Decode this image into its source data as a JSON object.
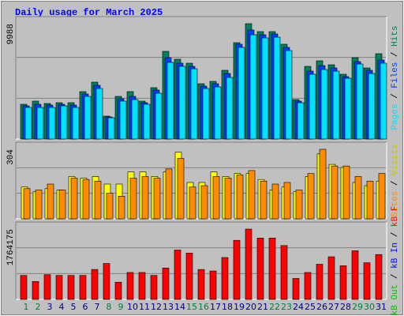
{
  "title": "Daily usage for March 2025",
  "categories": [
    "1",
    "2",
    "3",
    "4",
    "5",
    "6",
    "7",
    "8",
    "9",
    "10",
    "11",
    "12",
    "13",
    "14",
    "15",
    "16",
    "17",
    "18",
    "19",
    "20",
    "21",
    "22",
    "23",
    "24",
    "25",
    "26",
    "27",
    "28",
    "29",
    "30",
    "31"
  ],
  "category_colors": [
    "#008040",
    "#008040",
    "#000080",
    "#000080",
    "#000080",
    "#000080",
    "#000080",
    "#008040",
    "#008040",
    "#000080",
    "#000080",
    "#000080",
    "#000080",
    "#000080",
    "#008040",
    "#008040",
    "#000080",
    "#000080",
    "#000080",
    "#000080",
    "#000080",
    "#008040",
    "#008040",
    "#000080",
    "#000080",
    "#000080",
    "#000080",
    "#000080",
    "#008040",
    "#008040",
    "#000080"
  ],
  "chart_data": [
    {
      "type": "bar",
      "ylim": [
        0,
        9988
      ],
      "yticks": [
        9988
      ],
      "series": [
        {
          "name": "Hits",
          "color": "#00805c",
          "values": [
            3010,
            3284,
            3078,
            3147,
            3147,
            4105,
            4926,
            1984,
            3694,
            4105,
            3284,
            4447,
            7594,
            6909,
            6567,
            4789,
            4994,
            5952,
            8346,
            9988,
            9304,
            9304,
            8209,
            3420,
            6294,
            6773,
            6431,
            5610,
            7046,
            6157,
            7388
          ]
        },
        {
          "name": "Files",
          "color": "#0040ff",
          "values": [
            2873,
            3010,
            2942,
            3010,
            2942,
            3899,
            4652,
            1915,
            3489,
            3694,
            3147,
            4241,
            7046,
            6567,
            6294,
            4584,
            4789,
            5678,
            8209,
            9441,
            9030,
            9099,
            7936,
            3284,
            5883,
            6362,
            6157,
            5404,
            6704,
            5952,
            6841
          ]
        },
        {
          "name": "Pages",
          "color": "#00e0ff",
          "values": [
            2736,
            2736,
            2736,
            2873,
            2736,
            3694,
            4378,
            1847,
            3284,
            3420,
            3010,
            3968,
            6636,
            6294,
            6088,
            4378,
            4515,
            5336,
            7936,
            9030,
            8757,
            8825,
            7662,
            3147,
            5610,
            6020,
            5883,
            5267,
            6499,
            5678,
            6567
          ]
        }
      ]
    },
    {
      "type": "bar",
      "ylim": [
        0,
        304
      ],
      "yticks": [
        304
      ],
      "series": [
        {
          "name": "Visits",
          "color": "#ffff00",
          "values": [
            139,
            119,
            132,
            126,
            185,
            178,
            185,
            152,
            152,
            205,
            205,
            185,
            205,
            291,
            159,
            159,
            205,
            185,
            198,
            198,
            172,
            126,
            139,
            119,
            185,
            284,
            238,
            225,
            159,
            145,
            165
          ]
        },
        {
          "name": "Sites",
          "color": "#ff8c00",
          "values": [
            132,
            126,
            152,
            126,
            178,
            172,
            165,
            112,
            99,
            178,
            185,
            178,
            218,
            264,
            139,
            145,
            185,
            178,
            192,
            211,
            165,
            152,
            159,
            126,
            198,
            304,
            231,
            231,
            185,
            165,
            198
          ]
        }
      ]
    },
    {
      "type": "bar",
      "ylim": [
        0,
        1764175
      ],
      "yticks": [
        1764175
      ],
      "series": [
        {
          "name": "kB F",
          "color": "#ff0000",
          "values": [
            600573,
            450430,
            619339,
            600573,
            600573,
            600573,
            750720,
            900864,
            431664,
            675648,
            675648,
            600573,
            788256,
            1238688,
            1163616,
            750720,
            713184,
            1051008,
            1482672,
            1764175,
            1538976,
            1538976,
            1351296,
            525504,
            675648,
            882096,
            1069776,
            844560,
            1219920,
            919632,
            1126080
          ]
        },
        {
          "name": "kB In",
          "color": "#0000ff",
          "values": [
            0,
            0,
            0,
            0,
            0,
            0,
            0,
            0,
            0,
            0,
            0,
            0,
            0,
            0,
            0,
            0,
            0,
            0,
            0,
            0,
            0,
            0,
            0,
            0,
            0,
            0,
            0,
            0,
            0,
            0,
            0
          ]
        },
        {
          "name": "kB Out",
          "color": "#00c000",
          "values": [
            0,
            0,
            0,
            0,
            0,
            0,
            0,
            0,
            0,
            0,
            0,
            0,
            0,
            0,
            0,
            0,
            0,
            0,
            0,
            0,
            0,
            0,
            0,
            0,
            0,
            0,
            0,
            0,
            0,
            0,
            0
          ]
        }
      ]
    }
  ]
}
